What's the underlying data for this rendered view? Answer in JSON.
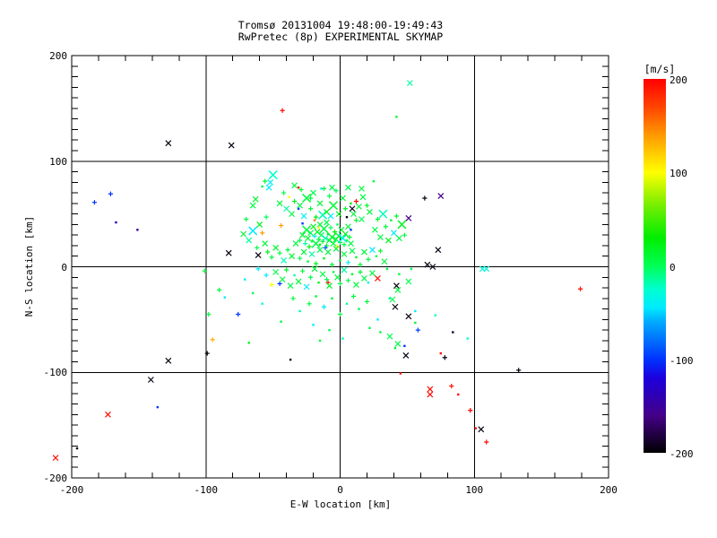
{
  "title_line1": "Tromsø 20131004 19:48:00-19:49:43",
  "title_line2": "RwPretec (8p) EXPERIMENTAL SKYMAP",
  "chart_data": {
    "type": "scatter",
    "title": "Tromsø 20131004 19:48:00-19:49:43 / RwPretec (8p) EXPERIMENTAL SKYMAP",
    "xlabel": "E-W location [km]",
    "ylabel": "N-S location [km]",
    "xlim": [
      -200,
      200
    ],
    "ylim": [
      -200,
      200
    ],
    "x_ticks": [
      -200,
      -100,
      0,
      100,
      200
    ],
    "y_ticks": [
      -200,
      -100,
      0,
      100,
      200
    ],
    "x_tick_labels": [
      "-200",
      "-100",
      "0",
      "100",
      "200"
    ],
    "y_tick_labels": [
      "-200",
      "-100",
      "0",
      "100",
      "200"
    ],
    "x_minor_step": 20,
    "y_minor_step": 10,
    "grid": "solid black lines at every major tick",
    "legend_position": "colorbar right",
    "colorbar": {
      "unit": "[m/s]",
      "min": -200,
      "max": 200,
      "ticks": [
        200,
        100,
        0,
        -100,
        -200
      ],
      "tick_labels": [
        "200",
        "100",
        "0",
        "-100",
        "-200"
      ],
      "stops": [
        [
          -200,
          "#000000"
        ],
        [
          -160,
          "#440088"
        ],
        [
          -120,
          "#1c00dd"
        ],
        [
          -100,
          "#0033ff"
        ],
        [
          -60,
          "#00aaff"
        ],
        [
          -45,
          "#00eaff"
        ],
        [
          -25,
          "#00ffcf"
        ],
        [
          0,
          "#00ff55"
        ],
        [
          30,
          "#00ee00"
        ],
        [
          65,
          "#77ee00"
        ],
        [
          100,
          "#ffff00"
        ],
        [
          140,
          "#ff9900"
        ],
        [
          170,
          "#ff4400"
        ],
        [
          200,
          "#ff0000"
        ]
      ]
    },
    "marker_note": "X = cross marker (sizes X large, x small), + = small plus, . = dot; color = Doppler velocity m/s",
    "points": [
      [
        -128,
        117,
        -195,
        "x"
      ],
      [
        -81,
        115,
        -195,
        "x"
      ],
      [
        -43,
        148,
        195,
        "+"
      ],
      [
        52,
        174,
        -15,
        "x"
      ],
      [
        42,
        142,
        10,
        "."
      ],
      [
        -171,
        69,
        -100,
        "+"
      ],
      [
        -183,
        61,
        -100,
        "+"
      ],
      [
        -167,
        42,
        -130,
        "."
      ],
      [
        -151,
        35,
        -150,
        "."
      ],
      [
        179,
        -21,
        195,
        "+"
      ],
      [
        106,
        -2,
        -30,
        "x"
      ],
      [
        109,
        -2,
        -30,
        "x"
      ],
      [
        133,
        -98,
        -195,
        "+"
      ],
      [
        -99,
        -82,
        -195,
        "+"
      ],
      [
        -128,
        -89,
        -195,
        "x"
      ],
      [
        -141,
        -107,
        -195,
        "x"
      ],
      [
        -136,
        -133,
        -100,
        "."
      ],
      [
        -173,
        -140,
        195,
        "x"
      ],
      [
        -196,
        -172,
        -195,
        "."
      ],
      [
        -212,
        -181,
        195,
        "x"
      ],
      [
        67,
        -116,
        195,
        "x"
      ],
      [
        67,
        -121,
        195,
        "x"
      ],
      [
        83,
        -113,
        195,
        "+"
      ],
      [
        88,
        -121,
        195,
        "."
      ],
      [
        97,
        -136,
        200,
        "+"
      ],
      [
        101,
        -153,
        195,
        "."
      ],
      [
        105,
        -154,
        -195,
        "x"
      ],
      [
        109,
        -166,
        195,
        "+"
      ],
      [
        -68,
        -72,
        20,
        "."
      ],
      [
        -37,
        -88,
        -190,
        "."
      ],
      [
        9,
        55,
        -195,
        "x"
      ],
      [
        51,
        46,
        -160,
        "x"
      ],
      [
        63,
        65,
        -195,
        "+"
      ],
      [
        75,
        67,
        -160,
        "x"
      ],
      [
        73,
        16,
        -195,
        "x"
      ],
      [
        65,
        2,
        -195,
        "x"
      ],
      [
        69,
        0,
        -195,
        "x"
      ],
      [
        42,
        -18,
        -195,
        "x"
      ],
      [
        28,
        -11,
        195,
        "x"
      ],
      [
        45,
        -101,
        195,
        "."
      ],
      [
        49,
        -84,
        -195,
        "x"
      ],
      [
        75,
        -82,
        195,
        "."
      ],
      [
        78,
        -86,
        -195,
        "+"
      ],
      [
        58,
        -60,
        -95,
        "+"
      ],
      [
        51,
        -47,
        -195,
        "x"
      ],
      [
        41,
        -38,
        -195,
        "x"
      ],
      [
        84,
        -62,
        -185,
        "."
      ],
      [
        95,
        -68,
        -30,
        "."
      ],
      [
        71,
        -46,
        -20,
        "."
      ],
      [
        56,
        -42,
        -45,
        "."
      ],
      [
        56,
        -53,
        15,
        "."
      ],
      [
        48,
        -75,
        -100,
        "."
      ],
      [
        41,
        -77,
        10,
        "."
      ],
      [
        37,
        -66,
        0,
        "x"
      ],
      [
        43,
        -73,
        5,
        "x"
      ],
      [
        51,
        -14,
        0,
        "x"
      ],
      [
        43,
        -22,
        8,
        "x"
      ],
      [
        39,
        -31,
        5,
        "x"
      ],
      [
        37,
        -30,
        -20,
        "."
      ],
      [
        35,
        -2,
        8,
        "."
      ],
      [
        53,
        -2,
        5,
        "."
      ],
      [
        44,
        -7,
        10,
        "."
      ],
      [
        -101,
        -4,
        10,
        "+"
      ],
      [
        -98,
        -45,
        5,
        "+"
      ],
      [
        -95,
        -69,
        130,
        "+"
      ],
      [
        -90,
        -22,
        8,
        "+"
      ],
      [
        -86,
        -29,
        -45,
        "."
      ],
      [
        -76,
        -45,
        -100,
        "+"
      ],
      [
        -71,
        -12,
        -45,
        "."
      ],
      [
        -61,
        -2,
        -45,
        "+"
      ],
      [
        -55,
        -8,
        -45,
        "+"
      ],
      [
        -51,
        -17,
        100,
        "+"
      ],
      [
        -45,
        -16,
        -100,
        "+"
      ],
      [
        -31,
        75,
        195,
        "."
      ],
      [
        -38,
        66,
        100,
        "."
      ],
      [
        -31,
        55,
        -100,
        "."
      ],
      [
        -58,
        32,
        140,
        "+"
      ],
      [
        -28,
        41,
        -100,
        "."
      ],
      [
        -7,
        48,
        -45,
        "x"
      ],
      [
        -22,
        65,
        10,
        "+"
      ],
      [
        -14,
        74,
        -45,
        "."
      ],
      [
        -6,
        75,
        5,
        "x"
      ],
      [
        16,
        74,
        8,
        "x"
      ],
      [
        17,
        66,
        5,
        "x"
      ],
      [
        2,
        65,
        10,
        "x"
      ],
      [
        12,
        62,
        195,
        "+"
      ],
      [
        -50,
        87,
        -25,
        "X"
      ],
      [
        -52,
        80,
        -40,
        "x"
      ],
      [
        -53,
        75,
        -45,
        "x"
      ],
      [
        -58,
        76,
        8,
        "."
      ],
      [
        25,
        81,
        10,
        "."
      ],
      [
        -56,
        81,
        10,
        "+"
      ],
      [
        -34,
        77,
        5,
        "x"
      ],
      [
        -9,
        -15,
        195,
        "+"
      ],
      [
        -33,
        22,
        10,
        "x"
      ],
      [
        -30,
        25,
        5,
        "+"
      ],
      [
        -28,
        30,
        15,
        "x"
      ],
      [
        -26,
        22,
        -15,
        "+"
      ],
      [
        -25,
        35,
        8,
        "X"
      ],
      [
        -24,
        27,
        12,
        "x"
      ],
      [
        -23,
        19,
        25,
        "+"
      ],
      [
        -22,
        32,
        5,
        "x"
      ],
      [
        -21,
        24,
        0,
        "."
      ],
      [
        -20,
        38,
        18,
        "x"
      ],
      [
        -19,
        29,
        -40,
        "+"
      ],
      [
        -18,
        22,
        8,
        "X"
      ],
      [
        -17,
        33,
        20,
        "x"
      ],
      [
        -16,
        26,
        5,
        "+"
      ],
      [
        -15,
        40,
        10,
        "x"
      ],
      [
        -15,
        21,
        30,
        "."
      ],
      [
        -14,
        30,
        0,
        "x"
      ],
      [
        -13,
        24,
        15,
        "+"
      ],
      [
        -12,
        36,
        8,
        "X"
      ],
      [
        -11,
        27,
        -20,
        "x"
      ],
      [
        -10,
        20,
        12,
        "+"
      ],
      [
        -10,
        42,
        5,
        "x"
      ],
      [
        -9,
        31,
        22,
        "."
      ],
      [
        -8,
        25,
        8,
        "x"
      ],
      [
        -7,
        37,
        0,
        "+"
      ],
      [
        -6,
        28,
        15,
        "X"
      ],
      [
        -5,
        22,
        5,
        "x"
      ],
      [
        -4,
        33,
        28,
        "+"
      ],
      [
        -3,
        26,
        10,
        "x"
      ],
      [
        -2,
        40,
        0,
        "."
      ],
      [
        -1,
        29,
        18,
        "x"
      ],
      [
        0,
        23,
        8,
        "+"
      ],
      [
        1,
        35,
        12,
        "x"
      ],
      [
        2,
        27,
        -35,
        "X"
      ],
      [
        3,
        21,
        5,
        "+"
      ],
      [
        4,
        31,
        20,
        "x"
      ],
      [
        5,
        25,
        0,
        "."
      ],
      [
        6,
        38,
        10,
        "x"
      ],
      [
        7,
        28,
        15,
        "+"
      ],
      [
        8,
        22,
        8,
        "x"
      ],
      [
        -45,
        60,
        10,
        "x"
      ],
      [
        -42,
        70,
        5,
        "+"
      ],
      [
        -40,
        55,
        -15,
        "x"
      ],
      [
        -36,
        50,
        8,
        "x"
      ],
      [
        -34,
        62,
        20,
        "+"
      ],
      [
        -30,
        58,
        5,
        "x"
      ],
      [
        -29,
        73,
        12,
        "+"
      ],
      [
        -27,
        48,
        -40,
        "x"
      ],
      [
        -25,
        65,
        8,
        "X"
      ],
      [
        -22,
        55,
        15,
        "+"
      ],
      [
        -20,
        70,
        5,
        "x"
      ],
      [
        -18,
        47,
        25,
        "+"
      ],
      [
        -15,
        60,
        10,
        "x"
      ],
      [
        -13,
        49,
        -20,
        "X"
      ],
      [
        -12,
        74,
        8,
        "+"
      ],
      [
        -10,
        52,
        18,
        "x"
      ],
      [
        -8,
        67,
        5,
        "+"
      ],
      [
        -5,
        58,
        12,
        "X"
      ],
      [
        -3,
        72,
        0,
        "+"
      ],
      [
        -1,
        50,
        20,
        "x"
      ],
      [
        4,
        55,
        15,
        "+"
      ],
      [
        6,
        75,
        5,
        "x"
      ],
      [
        8,
        60,
        25,
        "."
      ],
      [
        10,
        50,
        10,
        "x"
      ],
      [
        14,
        57,
        8,
        "x"
      ],
      [
        16,
        45,
        0,
        "x"
      ],
      [
        12,
        44,
        15,
        "+"
      ],
      [
        20,
        58,
        18,
        "+"
      ],
      [
        22,
        52,
        8,
        "x"
      ],
      [
        -16,
        37,
        100,
        "."
      ],
      [
        -2,
        19,
        100,
        "+"
      ],
      [
        -44,
        39,
        140,
        "+"
      ],
      [
        -19,
        44,
        150,
        "."
      ],
      [
        8,
        35,
        -100,
        "."
      ],
      [
        -11,
        18,
        -90,
        "+"
      ],
      [
        5,
        47,
        -195,
        "."
      ],
      [
        -72,
        31,
        10,
        "x"
      ],
      [
        -70,
        45,
        5,
        "+"
      ],
      [
        -68,
        25,
        -15,
        "x"
      ],
      [
        -65,
        58,
        8,
        "x"
      ],
      [
        -65,
        34,
        -45,
        "X"
      ],
      [
        -63,
        64,
        12,
        "x"
      ],
      [
        -62,
        18,
        5,
        "+"
      ],
      [
        -60,
        40,
        20,
        "x"
      ],
      [
        -56,
        22,
        10,
        "x"
      ],
      [
        -55,
        47,
        0,
        "+"
      ],
      [
        -83,
        13,
        -195,
        "x"
      ],
      [
        -61,
        11,
        -195,
        "x"
      ],
      [
        26,
        35,
        8,
        "x"
      ],
      [
        28,
        45,
        15,
        "+"
      ],
      [
        30,
        28,
        5,
        "x"
      ],
      [
        32,
        50,
        -20,
        "X"
      ],
      [
        34,
        38,
        10,
        "+"
      ],
      [
        36,
        25,
        20,
        "x"
      ],
      [
        38,
        44,
        8,
        "."
      ],
      [
        40,
        32,
        -45,
        "x"
      ],
      [
        42,
        48,
        12,
        "+"
      ],
      [
        44,
        27,
        5,
        "x"
      ],
      [
        46,
        40,
        18,
        "X"
      ],
      [
        48,
        30,
        8,
        "+"
      ],
      [
        -30,
        8,
        5,
        "+"
      ],
      [
        -27,
        14,
        10,
        "x"
      ],
      [
        -24,
        5,
        8,
        "."
      ],
      [
        -21,
        12,
        -15,
        "x"
      ],
      [
        -18,
        3,
        15,
        "+"
      ],
      [
        -15,
        16,
        5,
        "x"
      ],
      [
        -12,
        8,
        20,
        "."
      ],
      [
        -9,
        14,
        8,
        "x"
      ],
      [
        -6,
        2,
        10,
        "+"
      ],
      [
        -3,
        17,
        5,
        "x"
      ],
      [
        0,
        6,
        12,
        "."
      ],
      [
        3,
        12,
        8,
        "x"
      ],
      [
        6,
        4,
        -40,
        "+"
      ],
      [
        9,
        15,
        5,
        "x"
      ],
      [
        12,
        9,
        18,
        "."
      ],
      [
        15,
        2,
        8,
        "+"
      ],
      [
        -36,
        10,
        12,
        "x"
      ],
      [
        -39,
        16,
        5,
        "+"
      ],
      [
        -42,
        6,
        -20,
        "x"
      ],
      [
        -45,
        13,
        8,
        "+"
      ],
      [
        18,
        14,
        10,
        "x"
      ],
      [
        21,
        7,
        5,
        "+"
      ],
      [
        -48,
        18,
        15,
        "x"
      ],
      [
        24,
        16,
        -45,
        "x"
      ],
      [
        -51,
        9,
        8,
        "+"
      ],
      [
        27,
        10,
        5,
        "."
      ],
      [
        30,
        15,
        12,
        "+"
      ],
      [
        33,
        5,
        8,
        "x"
      ],
      [
        -54,
        14,
        20,
        "+"
      ],
      [
        -48,
        -5,
        5,
        "x"
      ],
      [
        -43,
        -12,
        8,
        "x"
      ],
      [
        -40,
        -3,
        15,
        "+"
      ],
      [
        -37,
        -18,
        5,
        "x"
      ],
      [
        -34,
        -8,
        -20,
        "."
      ],
      [
        -31,
        -14,
        10,
        "x"
      ],
      [
        -28,
        -4,
        8,
        "+"
      ],
      [
        -25,
        -19,
        -45,
        "x"
      ],
      [
        -22,
        -10,
        5,
        "+"
      ],
      [
        -19,
        -2,
        12,
        "x"
      ],
      [
        -16,
        -15,
        20,
        "."
      ],
      [
        -13,
        -7,
        8,
        "x"
      ],
      [
        -10,
        -12,
        0,
        "+"
      ],
      [
        -8,
        -18,
        15,
        "x"
      ],
      [
        -5,
        -5,
        5,
        "."
      ],
      [
        -2,
        -10,
        10,
        "x"
      ],
      [
        0,
        -16,
        8,
        "+"
      ],
      [
        3,
        -3,
        -15,
        "x"
      ],
      [
        6,
        -13,
        5,
        "+"
      ],
      [
        9,
        -7,
        18,
        "."
      ],
      [
        12,
        -17,
        8,
        "x"
      ],
      [
        15,
        -5,
        12,
        "+"
      ],
      [
        18,
        -11,
        5,
        "x"
      ],
      [
        21,
        -15,
        -45,
        "."
      ],
      [
        24,
        -6,
        10,
        "x"
      ],
      [
        -35,
        -30,
        8,
        "+"
      ],
      [
        -30,
        -42,
        -20,
        "."
      ],
      [
        -23,
        -35,
        5,
        "+"
      ],
      [
        -18,
        -28,
        12,
        "."
      ],
      [
        -12,
        -38,
        -45,
        "+"
      ],
      [
        -6,
        -30,
        8,
        "."
      ],
      [
        0,
        -45,
        5,
        "+"
      ],
      [
        5,
        -35,
        -15,
        "."
      ],
      [
        10,
        -28,
        10,
        "+"
      ],
      [
        14,
        -40,
        5,
        "."
      ],
      [
        20,
        -33,
        8,
        "+"
      ],
      [
        28,
        -50,
        -45,
        "."
      ],
      [
        30,
        -62,
        8,
        "."
      ],
      [
        22,
        -58,
        5,
        "."
      ],
      [
        -65,
        -25,
        5,
        "."
      ],
      [
        -58,
        -35,
        -30,
        "."
      ],
      [
        -44,
        -52,
        8,
        "."
      ],
      [
        -20,
        -55,
        -45,
        "."
      ],
      [
        -8,
        -60,
        5,
        "."
      ],
      [
        2,
        -68,
        -20,
        "."
      ],
      [
        -15,
        -70,
        8,
        "."
      ]
    ]
  }
}
